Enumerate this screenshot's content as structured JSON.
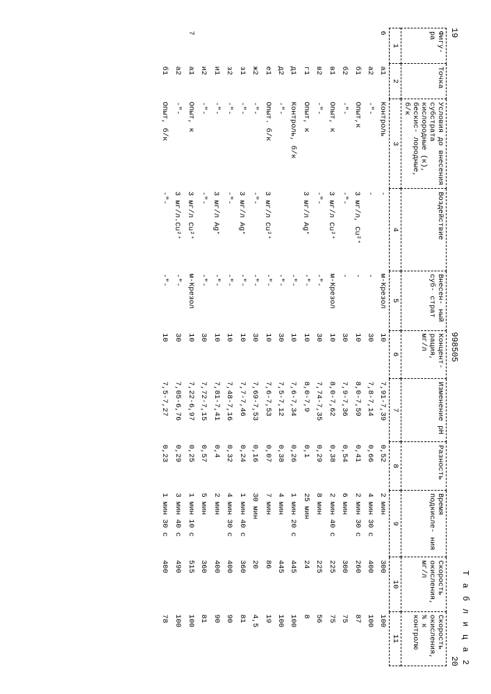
{
  "page": {
    "left_num": "19",
    "center_num": "998505",
    "right_num": "20",
    "table_label": "Т а б л и ц а 2"
  },
  "headers": [
    "Фигу-\nра",
    "Точка",
    "Условия до\nвнесения\nсубстрата\nкислородные\n(к), бескис-\nлородные, б/к",
    "Воздействие",
    "Внесен-\nный суб-\nстрат",
    "Концент-\nрация,\nмг/л",
    "Изменение\npH",
    "Разность",
    "Время\nподкисле-\nния",
    "Скорость\nокисления,\nмг/л",
    "Скорость\nокисления,\n% к контролю"
  ],
  "colnums": [
    "1",
    "2",
    "3",
    "4",
    "5",
    "6",
    "7",
    "8",
    "9",
    "10",
    "11"
  ],
  "rows": [
    [
      "6",
      "а1",
      "Контроль",
      "-",
      "м-Крезол",
      "10",
      "7,91-7,39",
      "0,52",
      "2 мин",
      "300",
      "100"
    ],
    [
      "",
      "а2",
      "-\"-",
      "-",
      "-",
      "30",
      "7,8-7,14",
      "0,66",
      "4 мин 30 с",
      "400",
      "100"
    ],
    [
      "",
      "б1",
      "Опыт,к",
      "3 мг/л, Cu²⁺",
      "-",
      "10",
      "8,0-7,59",
      "0,41",
      "2 мин 30 с",
      "260",
      "87"
    ],
    [
      "",
      "б2",
      "-\"-",
      "-\"-",
      "-",
      "30",
      "7,9-7,36",
      "0,54",
      "6 мин",
      "300",
      "75"
    ],
    [
      "",
      "в1",
      "Опыт, к",
      "3 мг/л Cu²⁺",
      "м-Крезол",
      "10",
      "8,0-7,62",
      "0,38",
      "2 мин 40 с",
      "225",
      "75"
    ],
    [
      "",
      "в2",
      "-\"-",
      "-\"-",
      "-\"-",
      "30",
      "7,74-7,35",
      "0,29",
      "8 мин",
      "225",
      "56"
    ],
    [
      "",
      "г1",
      "Опыт, к",
      "3 мг/л Ag⁺",
      "-\"-",
      "10",
      "8,0-7,9",
      "0,1",
      "25 мин",
      "24",
      "8"
    ],
    [
      "",
      "д1",
      "Контроль, б/к",
      "",
      "-\"-",
      "10",
      "7,6-7,34",
      "0,26",
      "1 мин 20 с",
      "445",
      "100"
    ],
    [
      "",
      "д2",
      "-\"-",
      "",
      "-\"-",
      "30",
      "7,5-7,12",
      "0,38",
      "4 мин",
      "445",
      "100"
    ],
    [
      "",
      "е1",
      "Опыт. б/к",
      "3 мг/л Cu²⁺",
      "-\"-",
      "10",
      "7,6-7,53",
      "0,07",
      "7 мин",
      "86",
      "19"
    ],
    [
      "",
      "ж2",
      "-\"-",
      "-\"-",
      "-\"-",
      "30",
      "7,69-7,53",
      "0,16",
      "30 мин",
      "20",
      "4,5"
    ],
    [
      "",
      "з1",
      "-\"-",
      "3 мг/л Ag⁺",
      "-\"-",
      "10",
      "7,7-7,46",
      "0,24",
      "1 мин 40 с",
      "360",
      "81"
    ],
    [
      "",
      "з2",
      "-\"-",
      "-\"-",
      "-\"-",
      "10",
      "7,48-7,16",
      "0,32",
      "4 мин 30 с",
      "400",
      "90"
    ],
    [
      "",
      "и1",
      "-\"-",
      "3 мг/л Ag⁺",
      "-\"-",
      "10",
      "7,81-7,41",
      "0,4",
      "2 мин",
      "400",
      "90"
    ],
    [
      "",
      "и2",
      "-\"-",
      "-\"-",
      "-\"-",
      "30",
      "7,72-7,15",
      "0,57",
      "5 мин",
      "360",
      "81"
    ],
    [
      "7",
      "а1",
      "Опыт, к",
      "3 мг/л Cu²⁺",
      "м-Крезол",
      "10",
      "7,22-6,97",
      "0,25",
      "1 мин 10 с",
      "515",
      "100"
    ],
    [
      "",
      "а2",
      "-\"-",
      "3 мг/л.Cu²⁺",
      "-\"-",
      "30",
      "7,05-6,76",
      "0,29",
      "3 мин 40 с",
      "490",
      "100"
    ],
    [
      "",
      "б1",
      "Опыт, б/к",
      "-\"-",
      "-\"-",
      "10",
      "7,5-7,27",
      "0,23",
      "1 мин 30 с",
      "400",
      "78"
    ]
  ]
}
